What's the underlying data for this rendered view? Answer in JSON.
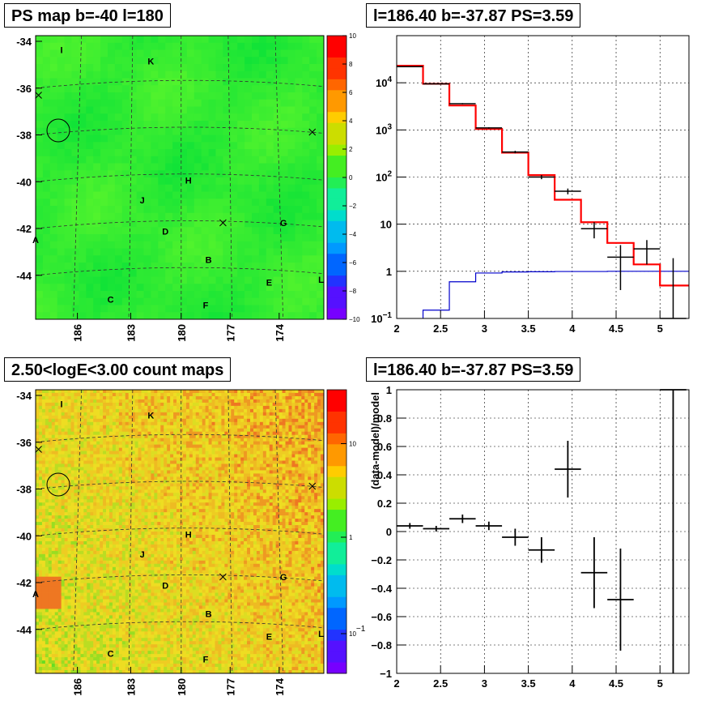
{
  "panels": {
    "tl_title": "PS map b=-40 l=180",
    "tr_title": "l=186.40 b=-37.87 PS=3.59",
    "bl_title": "2.50<logE<3.00 count maps",
    "br_title": "l=186.40 b=-37.87 PS=3.59"
  },
  "chart_data": [
    {
      "type": "heatmap",
      "id": "ps_map",
      "title": "PS map b=-40 l=180",
      "y_ticks": [
        "-34",
        "-36",
        "-38",
        "-40",
        "-42",
        "-44"
      ],
      "x_ticks": [
        "186",
        "183",
        "180",
        "177",
        "174"
      ],
      "colorbar": {
        "range": [
          -10,
          10
        ],
        "ticks": [
          "10",
          "8",
          "6",
          "4",
          "2",
          "0",
          "−2",
          "−4",
          "−6",
          "−8",
          "−10"
        ]
      },
      "source_labels": [
        "I",
        "K",
        "H",
        "J",
        "G",
        "D",
        "B",
        "E",
        "L",
        "C",
        "F",
        "A"
      ],
      "colors": {
        "base": "#33ee33"
      }
    },
    {
      "type": "line",
      "id": "spectrum",
      "title": "l=186.40 b=-37.87 PS=3.59",
      "xlim": [
        2,
        5.33
      ],
      "ylim": [
        0.1,
        100000
      ],
      "yscale": "log",
      "x_ticks": [
        "2",
        "2.5",
        "3",
        "3.5",
        "4",
        "4.5",
        "5"
      ],
      "y_ticks": [
        "10^4",
        "10^3",
        "10^2",
        "10",
        "1",
        "10^-1"
      ],
      "data": {
        "x": [
          2.15,
          2.45,
          2.75,
          3.05,
          3.35,
          3.65,
          3.95,
          4.25,
          4.55,
          4.85,
          5.15
        ],
        "y": [
          22000,
          9500,
          3600,
          1100,
          340,
          100,
          50,
          8,
          2,
          3,
          0.1
        ],
        "yerr_up": [
          22100,
          9600,
          3700,
          1140,
          360,
          110,
          57,
          11,
          3.6,
          4.6,
          1.9
        ]
      },
      "series": [
        {
          "edges": [
            2.0,
            2.3,
            2.6,
            2.9,
            3.2,
            3.5,
            3.8,
            4.1,
            4.4,
            4.7,
            5.0,
            5.33
          ],
          "values": [
            23000,
            9500,
            3300,
            1050,
            330,
            110,
            33,
            11,
            4,
            1.4,
            0.5
          ],
          "color": "#ff0000"
        },
        {
          "edges": [
            2.3,
            2.6,
            2.9,
            3.2,
            3.5,
            3.8,
            4.1,
            4.4,
            4.7,
            5.0,
            5.33
          ],
          "values": [
            0.15,
            0.6,
            0.92,
            0.97,
            0.98,
            0.99,
            0.99,
            1.0,
            1.0,
            1.0,
            1.0
          ],
          "color": "#0000cc"
        }
      ]
    },
    {
      "type": "heatmap",
      "id": "count_map",
      "title": "2.50<logE<3.00 count maps",
      "y_ticks": [
        "-34",
        "-36",
        "-38",
        "-40",
        "-42",
        "-44"
      ],
      "x_ticks": [
        "186",
        "183",
        "180",
        "177",
        "174"
      ],
      "colorbar": {
        "scale": "log",
        "ticks": [
          "10",
          "1",
          "10^-1"
        ]
      },
      "source_labels": [
        "I",
        "K",
        "H",
        "J",
        "G",
        "D",
        "B",
        "E",
        "L",
        "C",
        "F",
        "A"
      ]
    },
    {
      "type": "scatter",
      "id": "residuals",
      "title": "l=186.40 b=-37.87 PS=3.59",
      "ylabel": "(data-model)/model",
      "xlim": [
        2,
        5.33
      ],
      "ylim": [
        -1,
        1
      ],
      "x_ticks": [
        "2",
        "2.5",
        "3",
        "3.5",
        "4",
        "4.5",
        "5"
      ],
      "y_ticks": [
        "1",
        "0.8",
        "0.6",
        "0.4",
        "0.2",
        "0",
        "−0.2",
        "−0.4",
        "−0.6",
        "−0.8",
        "−1"
      ],
      "data": {
        "x": [
          2.15,
          2.45,
          2.75,
          3.05,
          3.35,
          3.65,
          3.95,
          4.25,
          4.55,
          5.15
        ],
        "y": [
          0.04,
          0.02,
          0.09,
          0.04,
          -0.04,
          -0.13,
          0.44,
          -0.29,
          -0.48,
          1.0
        ],
        "yerr": [
          0.02,
          0.02,
          0.03,
          0.03,
          0.06,
          0.09,
          0.2,
          0.25,
          0.36,
          2.0
        ]
      }
    }
  ]
}
